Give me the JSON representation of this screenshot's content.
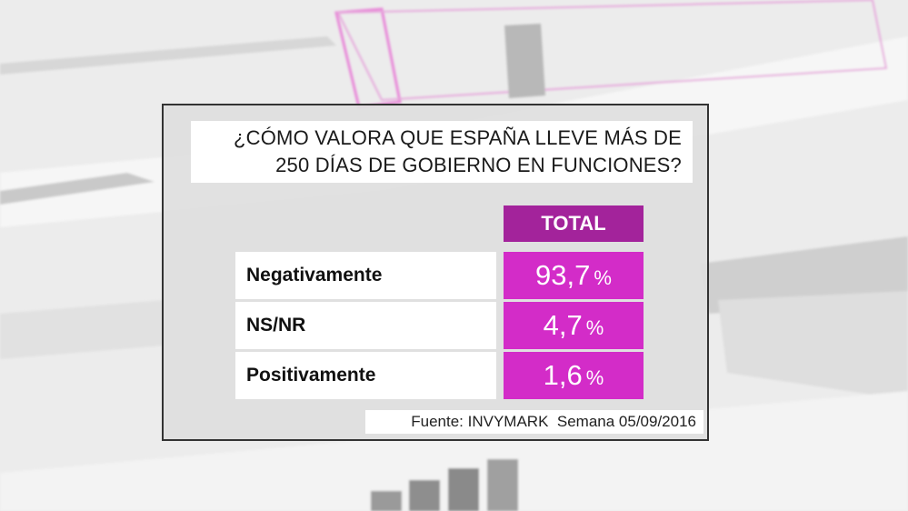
{
  "question": {
    "line1": "¿CÓMO VALORA QUE ESPAÑA LLEVE MÁS DE",
    "line2": "250 DÍAS DE GOBIERNO EN FUNCIONES?"
  },
  "chart_data": {
    "type": "table",
    "title": "¿CÓMO VALORA QUE ESPAÑA LLEVE MÁS DE 250 DÍAS DE GOBIERNO EN FUNCIONES?",
    "columns": [
      "TOTAL"
    ],
    "rows": [
      {
        "label": "Negativamente",
        "value": "93,7",
        "unit": "%"
      },
      {
        "label": "NS/NR",
        "value": "4,7",
        "unit": "%"
      },
      {
        "label": "Positivamente",
        "value": "1,6",
        "unit": "%"
      }
    ],
    "source": "Fuente: INVYMARK  Semana 05/09/2016"
  },
  "colors": {
    "header_bg": "#a3239b",
    "value_bg": "#d32cc8",
    "accent_line": "#e060d0"
  }
}
